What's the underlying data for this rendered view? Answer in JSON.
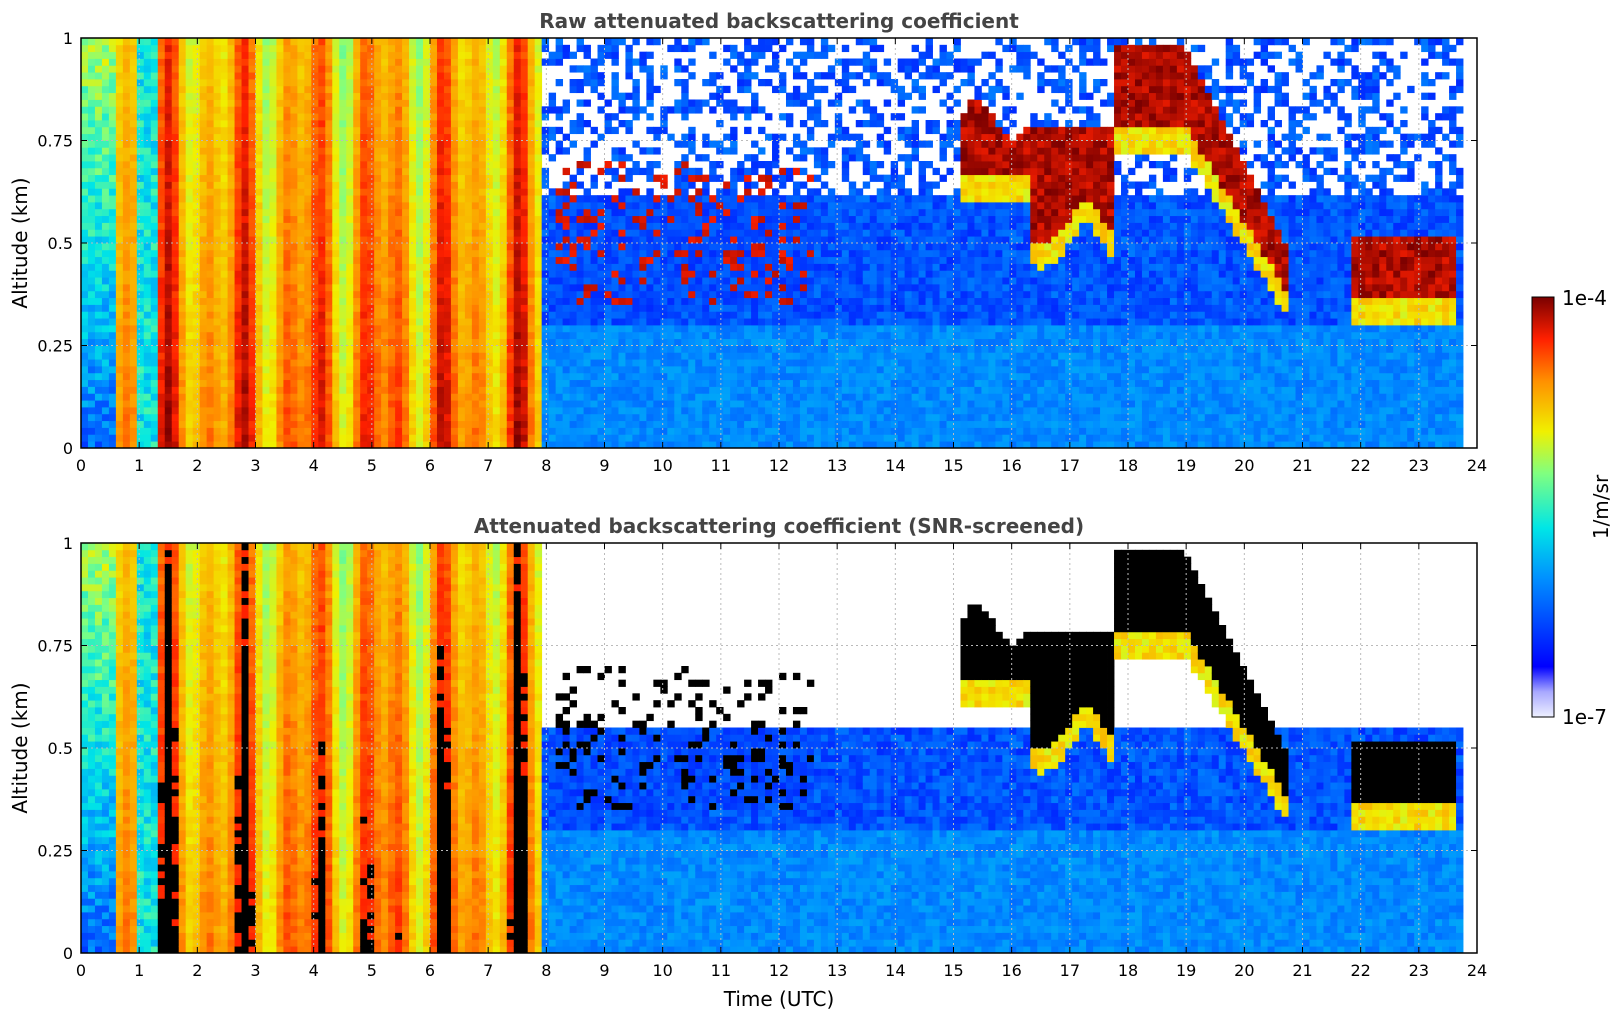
{
  "figure": {
    "colorbar": {
      "max_label": "1e-4",
      "min_label": "1e-7",
      "label": "1/m/sr",
      "vmin": 1e-07,
      "vmax": 0.0001,
      "scale": "log",
      "colormap": "jet (white/lavender at low end)"
    }
  },
  "chart_data": [
    {
      "type": "heatmap",
      "title": "Raw attenuated backscattering coefficient",
      "xlabel": "",
      "ylabel": "Altitude (km)",
      "xlim": [
        0,
        24
      ],
      "ylim": [
        0,
        1
      ],
      "x_ticks": [
        "0",
        "1",
        "2",
        "3",
        "4",
        "5",
        "6",
        "7",
        "8",
        "9",
        "10",
        "11",
        "12",
        "13",
        "14",
        "15",
        "16",
        "17",
        "18",
        "19",
        "20",
        "21",
        "22",
        "23",
        "24"
      ],
      "y_ticks": [
        "0",
        "0.25",
        "0.5",
        "0.75",
        "1"
      ],
      "grid": true,
      "z_units": "1/m/sr",
      "z_scale": "log",
      "features": [
        {
          "time": [
            0.0,
            7.9
          ],
          "altitude": [
            0,
            1
          ],
          "level": "high (yellow-red, fog/precipitation)"
        },
        {
          "time": [
            15.1,
            16.3
          ],
          "altitude": [
            0.65,
            0.85
          ],
          "level": "max (dark red cloud)"
        },
        {
          "time": [
            17.8,
            19.0
          ],
          "altitude": [
            0.8,
            1.0
          ],
          "level": "max (dark red cloud)"
        },
        {
          "time": [
            19.0,
            20.8
          ],
          "altitude": [
            0.38,
            0.8
          ],
          "level": "max (descending cloud base)"
        },
        {
          "time": [
            21.8,
            23.6
          ],
          "altitude": [
            0.35,
            0.5
          ],
          "level": "max (dark red cloud)"
        },
        {
          "time": [
            7.9,
            23.8
          ],
          "altitude": [
            0,
            0.3
          ],
          "level": "low (blue boundary layer)"
        }
      ]
    },
    {
      "type": "heatmap",
      "title": "Attenuated backscattering coefficient (SNR-screened)",
      "xlabel": "Time (UTC)",
      "ylabel": "Altitude (km)",
      "xlim": [
        0,
        24
      ],
      "ylim": [
        0,
        1
      ],
      "x_ticks": [
        "0",
        "1",
        "2",
        "3",
        "4",
        "5",
        "6",
        "7",
        "8",
        "9",
        "10",
        "11",
        "12",
        "13",
        "14",
        "15",
        "16",
        "17",
        "18",
        "19",
        "20",
        "21",
        "22",
        "23",
        "24"
      ],
      "y_ticks": [
        "0",
        "0.25",
        "0.5",
        "0.75",
        "1"
      ],
      "grid": true,
      "z_units": "1/m/sr",
      "z_scale": "log",
      "features": [
        {
          "time": [
            0.0,
            7.9
          ],
          "altitude": [
            0,
            1
          ],
          "level": "high (yellow-red)"
        },
        {
          "time": [
            15.1,
            16.0
          ],
          "altitude": [
            0.62,
            0.85
          ],
          "level": "saturated (black)"
        },
        {
          "time": [
            17.9,
            19.0
          ],
          "altitude": [
            0.75,
            1.0
          ],
          "level": "saturated (black)"
        },
        {
          "time": [
            19.0,
            20.8
          ],
          "altitude": [
            0.35,
            0.75
          ],
          "level": "saturated (black)"
        },
        {
          "time": [
            21.8,
            23.5
          ],
          "altitude": [
            0.35,
            0.5
          ],
          "level": "saturated (black)"
        },
        {
          "time": [
            7.9,
            23.8
          ],
          "altitude": [
            0,
            0.3
          ],
          "level": "low (blue)"
        },
        {
          "time": [
            8.0,
            23.8
          ],
          "altitude": [
            0.55,
            1.0
          ],
          "level": "screened out (white)"
        }
      ]
    }
  ]
}
